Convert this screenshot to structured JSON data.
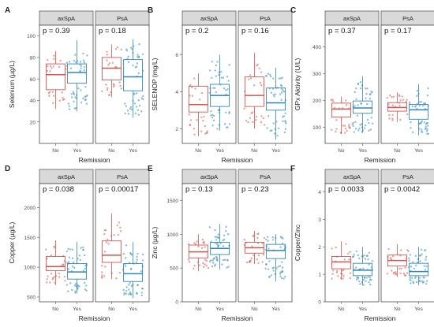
{
  "colors": {
    "no": "#D9534F",
    "yes": "#2E86C1",
    "strip_bg": "#D9D9D9",
    "panel_border": "#333333",
    "text": "#222222",
    "tick_text": "#4d4d4d"
  },
  "x_axis_title": "Remission",
  "facets": [
    "axSpA",
    "PsA"
  ],
  "groups": [
    "No",
    "Yes"
  ],
  "chart_data": [
    {
      "panel": "A",
      "type": "boxplot",
      "ylabel": "Selenium (µg/L)",
      "ylim": [
        0,
        110
      ],
      "yticks": [
        20,
        40,
        60,
        80,
        100
      ],
      "facets": [
        {
          "name": "axSpA",
          "pvalue": "p = 0.39",
          "boxes": {
            "No": {
              "q1": 50,
              "median": 64,
              "q3": 74,
              "min": 32,
              "max": 86
            },
            "Yes": {
              "q1": 56,
              "median": 66,
              "q3": 74,
              "min": 30,
              "max": 96
            }
          }
        },
        {
          "name": "PsA",
          "pvalue": "p = 0.18",
          "boxes": {
            "No": {
              "q1": 59,
              "median": 70,
              "q3": 80,
              "min": 43,
              "max": 92
            },
            "Yes": {
              "q1": 49,
              "median": 62,
              "q3": 78,
              "min": 24,
              "max": 97
            }
          }
        }
      ]
    },
    {
      "panel": "B",
      "type": "boxplot",
      "ylabel": "SELENOP (mg/L)",
      "ylim": [
        1.2,
        7.6
      ],
      "yticks": [
        2,
        4,
        6
      ],
      "facets": [
        {
          "name": "axSpA",
          "pvalue": "p = 0.2",
          "boxes": {
            "No": {
              "q1": 2.9,
              "median": 3.3,
              "q3": 4.3,
              "min": 1.6,
              "max": 5.0
            },
            "Yes": {
              "q1": 3.2,
              "median": 3.8,
              "q3": 4.4,
              "min": 1.9,
              "max": 6.0
            }
          }
        },
        {
          "name": "PsA",
          "pvalue": "p = 0.16",
          "boxes": {
            "No": {
              "q1": 3.2,
              "median": 3.8,
              "q3": 4.8,
              "min": 2.0,
              "max": 6.1
            },
            "Yes": {
              "q1": 3.0,
              "median": 3.4,
              "q3": 4.2,
              "min": 1.4,
              "max": 5.3
            }
          }
        }
      ]
    },
    {
      "panel": "C",
      "type": "boxplot",
      "ylabel": "GPx Aktivity (U/L)",
      "ylim": [
        40,
        480
      ],
      "yticks": [
        100,
        200,
        300,
        400
      ],
      "facets": [
        {
          "name": "axSpA",
          "pvalue": "p = 0.37",
          "boxes": {
            "No": {
              "q1": 138,
              "median": 168,
              "q3": 190,
              "min": 75,
              "max": 215
            },
            "Yes": {
              "q1": 152,
              "median": 172,
              "q3": 198,
              "min": 80,
              "max": 290
            }
          }
        },
        {
          "name": "PsA",
          "pvalue": "p = 0.17",
          "boxes": {
            "No": {
              "q1": 160,
              "median": 174,
              "q3": 192,
              "min": 120,
              "max": 230
            },
            "Yes": {
              "q1": 130,
              "median": 165,
              "q3": 185,
              "min": 70,
              "max": 260
            }
          }
        }
      ]
    },
    {
      "panel": "D",
      "type": "boxplot",
      "ylabel": "Copper (µg/L)",
      "ylim": [
        420,
        2400
      ],
      "yticks": [
        500,
        1000,
        1500,
        2000
      ],
      "facets": [
        {
          "name": "axSpA",
          "pvalue": "p = 0.038",
          "boxes": {
            "No": {
              "q1": 940,
              "median": 1010,
              "q3": 1180,
              "min": 700,
              "max": 1450
            },
            "Yes": {
              "q1": 800,
              "median": 920,
              "q3": 1060,
              "min": 560,
              "max": 1420
            }
          }
        },
        {
          "name": "PsA",
          "pvalue": "p = 0.00017",
          "boxes": {
            "No": {
              "q1": 1080,
              "median": 1200,
              "q3": 1440,
              "min": 800,
              "max": 1900
            },
            "Yes": {
              "q1": 760,
              "median": 890,
              "q3": 1060,
              "min": 480,
              "max": 1420
            }
          }
        }
      ]
    },
    {
      "panel": "E",
      "type": "boxplot",
      "ylabel": "Zinc (µg/L)",
      "ylim": [
        0,
        1750
      ],
      "yticks": [
        0,
        500,
        1000,
        1500
      ],
      "facets": [
        {
          "name": "axSpA",
          "pvalue": "p = 0.13",
          "boxes": {
            "No": {
              "q1": 650,
              "median": 740,
              "q3": 840,
              "min": 450,
              "max": 1000
            },
            "Yes": {
              "q1": 700,
              "median": 790,
              "q3": 880,
              "min": 480,
              "max": 1150
            }
          }
        },
        {
          "name": "PsA",
          "pvalue": "p = 0.23",
          "boxes": {
            "No": {
              "q1": 720,
              "median": 800,
              "q3": 880,
              "min": 560,
              "max": 1050
            },
            "Yes": {
              "q1": 640,
              "median": 760,
              "q3": 850,
              "min": 300,
              "max": 1000
            }
          }
        }
      ]
    },
    {
      "panel": "F",
      "type": "boxplot",
      "ylabel": "Copper/Zinc",
      "ylim": [
        0,
        4.3
      ],
      "yticks": [
        0,
        1,
        2,
        3,
        4
      ],
      "facets": [
        {
          "name": "axSpA",
          "pvalue": "p = 0.0033",
          "boxes": {
            "No": {
              "q1": 1.2,
              "median": 1.45,
              "q3": 1.65,
              "min": 0.8,
              "max": 2.2
            },
            "Yes": {
              "q1": 0.95,
              "median": 1.15,
              "q3": 1.4,
              "min": 0.6,
              "max": 2.0
            }
          }
        },
        {
          "name": "PsA",
          "pvalue": "p = 0.0042",
          "boxes": {
            "No": {
              "q1": 1.3,
              "median": 1.5,
              "q3": 1.7,
              "min": 0.9,
              "max": 2.1
            },
            "Yes": {
              "q1": 0.95,
              "median": 1.1,
              "q3": 1.4,
              "min": 0.6,
              "max": 2.0
            }
          }
        }
      ]
    }
  ]
}
